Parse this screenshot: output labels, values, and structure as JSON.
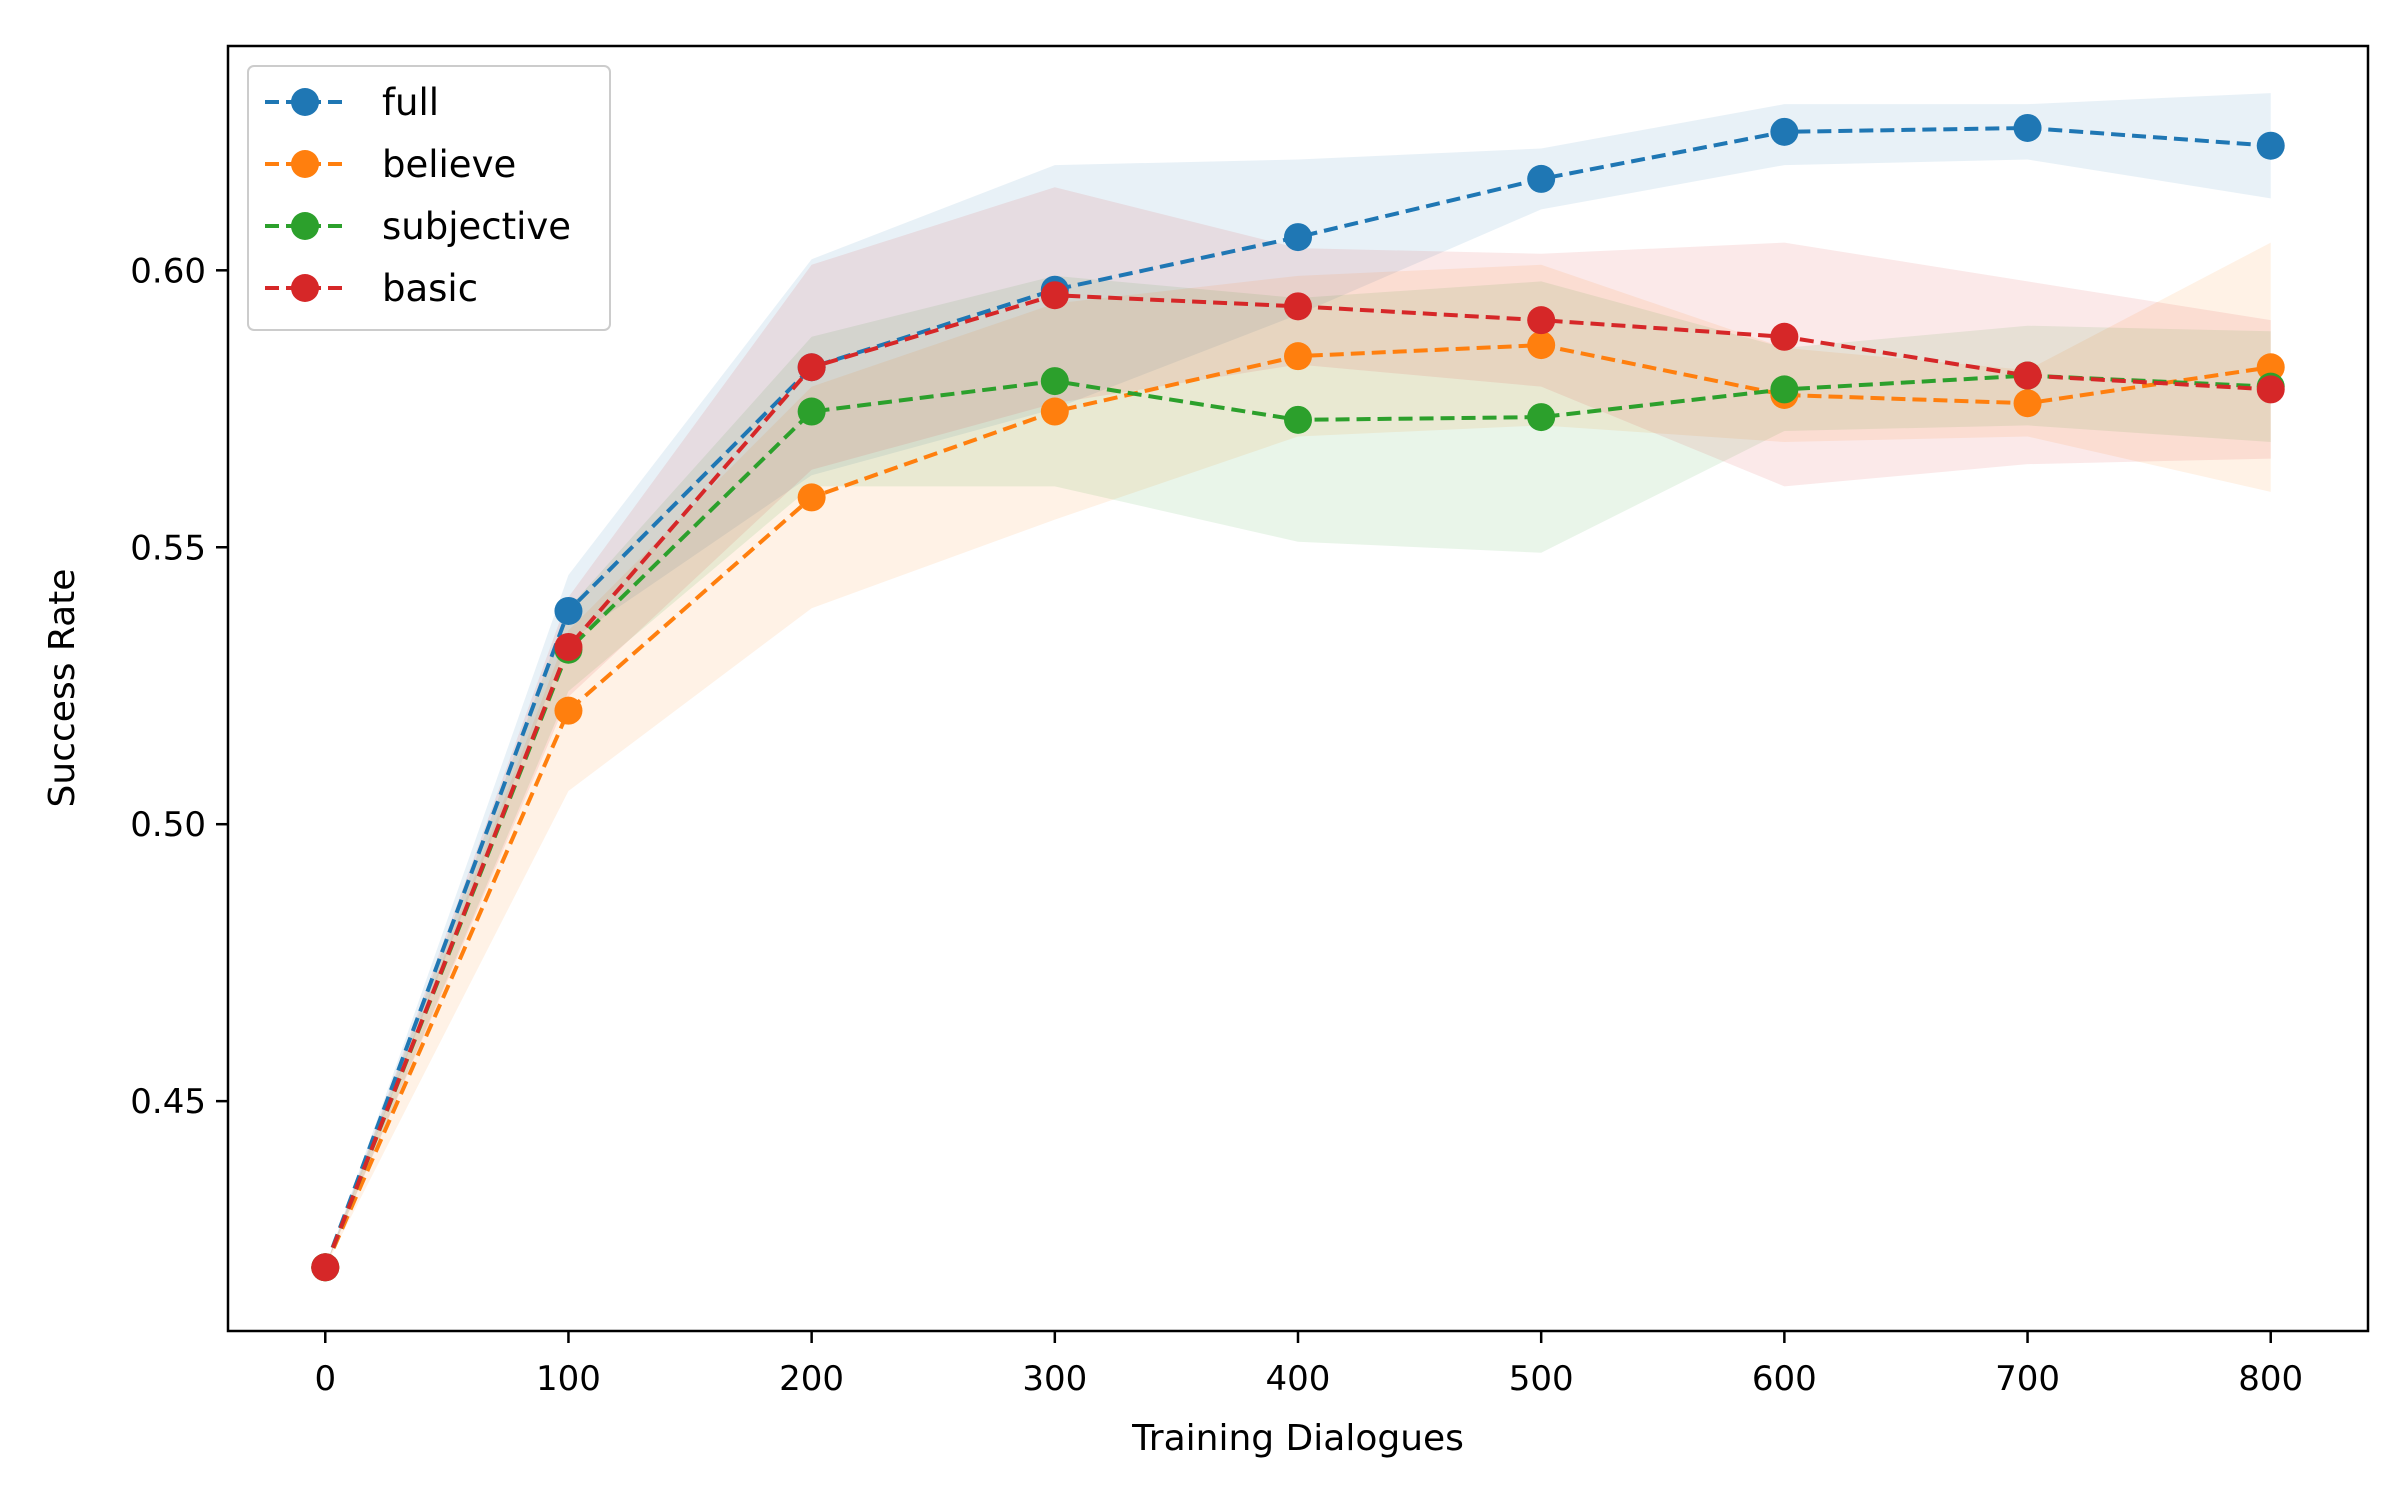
{
  "chart_data": {
    "type": "line",
    "title": "",
    "xlabel": "Training Dialogues",
    "ylabel": "Success Rate",
    "x": [
      0,
      100,
      200,
      300,
      400,
      500,
      600,
      700,
      800
    ],
    "xlim": [
      -40,
      840
    ],
    "ylim": [
      0.4085,
      0.6405
    ],
    "xticks": [
      0,
      100,
      200,
      300,
      400,
      500,
      600,
      700,
      800
    ],
    "yticks": [
      0.45,
      0.5,
      0.55,
      0.6
    ],
    "ytick_labels": [
      "0.45",
      "0.50",
      "0.55",
      "0.60"
    ],
    "legend_position": "top-left",
    "grid": false,
    "series": [
      {
        "name": "full",
        "color": "#1f77b4",
        "values": [
          0.42,
          0.5385,
          0.5825,
          0.5965,
          0.606,
          0.6165,
          0.625,
          0.6257,
          0.6225
        ],
        "lower": [
          0.42,
          0.533,
          0.563,
          0.575,
          0.592,
          0.611,
          0.619,
          0.62,
          0.613
        ],
        "upper": [
          0.42,
          0.545,
          0.602,
          0.619,
          0.62,
          0.622,
          0.63,
          0.63,
          0.632
        ]
      },
      {
        "name": "believe",
        "color": "#ff7f0e",
        "values": [
          0.42,
          0.5205,
          0.559,
          0.5745,
          0.5845,
          0.5865,
          0.5775,
          0.576,
          0.5825
        ],
        "lower": [
          0.42,
          0.506,
          0.539,
          0.555,
          0.57,
          0.572,
          0.569,
          0.57,
          0.56
        ],
        "upper": [
          0.42,
          0.535,
          0.579,
          0.594,
          0.599,
          0.601,
          0.586,
          0.582,
          0.605
        ]
      },
      {
        "name": "subjective",
        "color": "#2ca02c",
        "values": [
          0.42,
          0.5315,
          0.5745,
          0.58,
          0.573,
          0.5735,
          0.5785,
          0.581,
          0.579
        ],
        "lower": [
          0.42,
          0.524,
          0.561,
          0.561,
          0.551,
          0.549,
          0.571,
          0.572,
          0.569
        ],
        "upper": [
          0.42,
          0.539,
          0.588,
          0.599,
          0.595,
          0.598,
          0.586,
          0.59,
          0.589
        ]
      },
      {
        "name": "basic",
        "color": "#d62728",
        "values": [
          0.42,
          0.532,
          0.5825,
          0.5955,
          0.5935,
          0.591,
          0.588,
          0.581,
          0.5785
        ],
        "lower": [
          0.42,
          0.523,
          0.564,
          0.576,
          0.583,
          0.579,
          0.561,
          0.565,
          0.566
        ],
        "upper": [
          0.42,
          0.541,
          0.601,
          0.615,
          0.604,
          0.603,
          0.605,
          0.598,
          0.591
        ]
      }
    ]
  }
}
